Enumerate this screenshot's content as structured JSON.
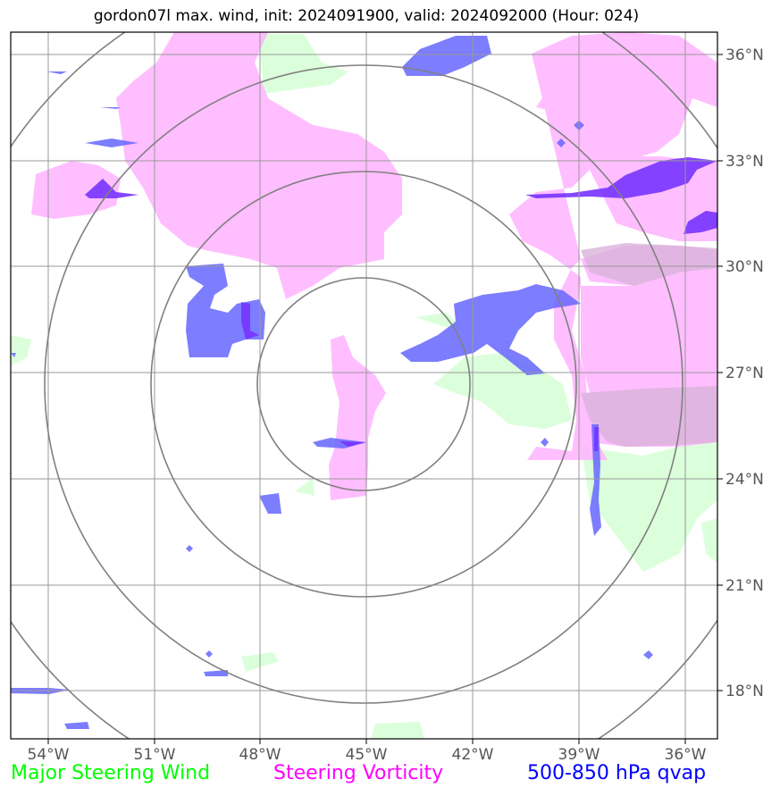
{
  "title": "gordon07l max. wind, init: 2024091900, valid: 2024092000 (Hour: 024)",
  "map": {
    "lon_range": [
      -56,
      -36
    ],
    "lat_range": [
      16.7,
      36.6
    ],
    "lon_ticks": [
      -54,
      -51,
      -48,
      -45,
      -42,
      -39,
      -36
    ],
    "lon_labels": [
      "54°W",
      "51°W",
      "48°W",
      "45°W",
      "42°W",
      "39°W",
      "36°W"
    ],
    "lat_ticks": [
      36,
      33,
      30,
      27,
      24,
      21,
      18
    ],
    "lat_labels": [
      "36°N",
      "33°N",
      "30°N",
      "27°N",
      "24°N",
      "21°N",
      "18°N"
    ],
    "center": {
      "lon": -45,
      "lat": 26.8
    },
    "ring_radii_deg": [
      3,
      6,
      9,
      12
    ],
    "colors": {
      "wind": "#ccffcc",
      "vorticity": "#ffb3ff",
      "qvap": "#6666ff",
      "qvap_dark": "#7733ff",
      "grid": "#999999",
      "rings": "#808080"
    }
  },
  "legend": {
    "wind": "Major Steering Wind",
    "vorticity": "Steering Vorticity",
    "qvap": "500-850 hPa qvap"
  }
}
